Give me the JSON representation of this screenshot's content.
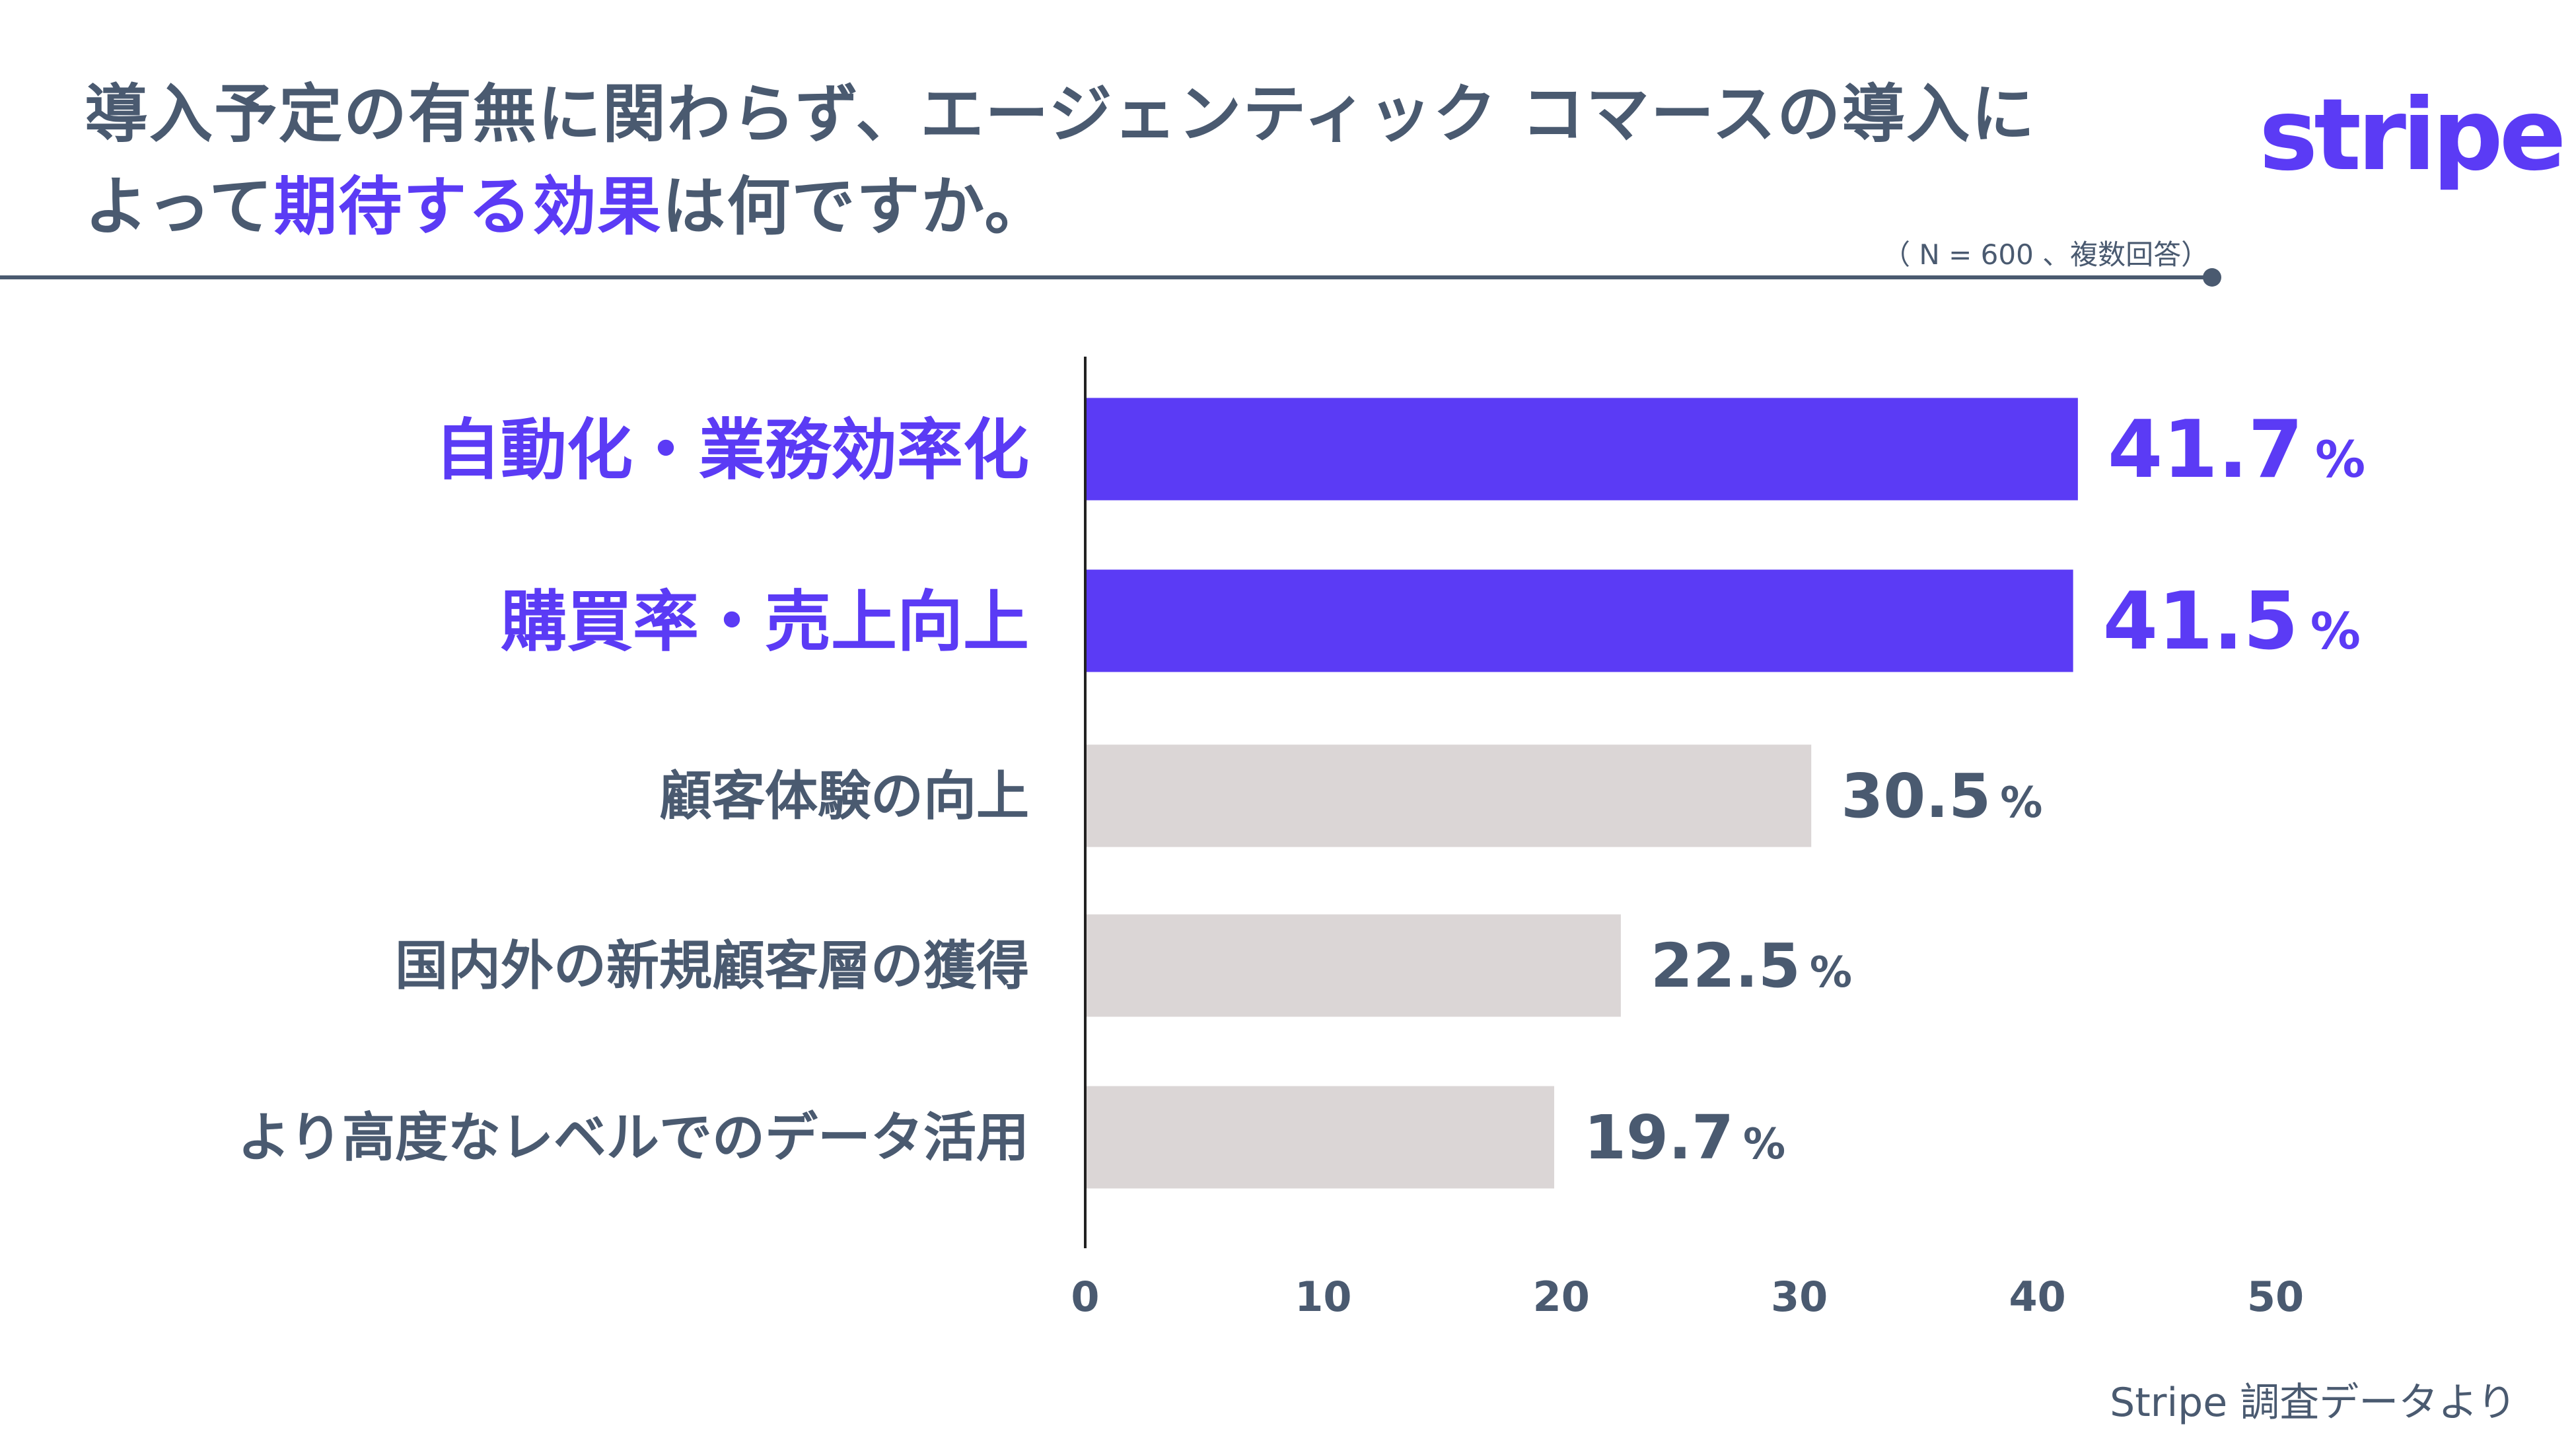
{
  "title": {
    "line1": "導入予定の有無に関わらず、エージェンティック コマースの導入に",
    "line2_pre": "よって",
    "line2_highlight": "期待する効果",
    "line2_post": "は何ですか。"
  },
  "logo_text": "stripe",
  "sample_note": "（ N = 600 、複数回答）",
  "source": "Stripe 調査データより",
  "colors": {
    "accent": "#5b3bf5",
    "text": "#4a5a70",
    "bar_gray": "#dbd6d6",
    "axis": "#222222"
  },
  "chart_data": {
    "type": "bar",
    "orientation": "horizontal",
    "categories": [
      "自動化・業務効率化",
      "購買率・売上向上",
      "顧客体験の向上",
      "国内外の新規顧客層の獲得",
      "より高度なレベルでのデータ活用"
    ],
    "values": [
      41.7,
      41.5,
      30.5,
      22.5,
      19.7
    ],
    "value_labels": [
      "41.7",
      "41.5",
      "30.5",
      "22.5",
      "19.7"
    ],
    "unit": "%",
    "highlighted": [
      true,
      true,
      false,
      false,
      false
    ],
    "xlim": [
      0,
      50
    ],
    "xticks": [
      "0",
      "10",
      "20",
      "30",
      "40",
      "50"
    ],
    "grid": false
  }
}
